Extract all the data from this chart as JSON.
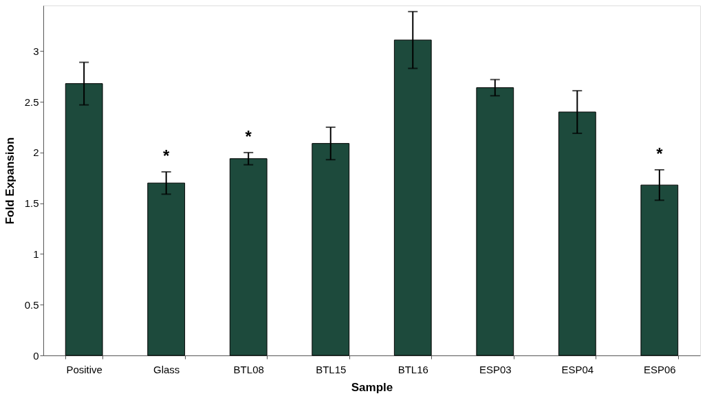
{
  "chart_data": {
    "type": "bar",
    "xlabel": "Sample",
    "ylabel": "Fold Expansion",
    "categories": [
      "Positive",
      "Glass",
      "BTL08",
      "BTL15",
      "BTL16",
      "ESP03",
      "ESP04",
      "ESP06"
    ],
    "values": [
      2.68,
      1.7,
      1.94,
      2.09,
      3.11,
      2.64,
      2.4,
      1.68
    ],
    "errors": [
      0.21,
      0.11,
      0.06,
      0.16,
      0.28,
      0.08,
      0.21,
      0.15
    ],
    "color": "#1d4a3c",
    "ylim": [
      0,
      3.45
    ],
    "yticks": [
      0,
      0.5,
      1,
      1.5,
      2,
      2.5,
      3
    ],
    "grid": false,
    "annotations": [
      {
        "text": "*",
        "x": "Glass",
        "y": 1.81
      },
      {
        "text": "*",
        "x": "BTL08",
        "y": 2.0
      },
      {
        "text": "*",
        "x": "ESP06",
        "y": 1.83
      }
    ]
  }
}
